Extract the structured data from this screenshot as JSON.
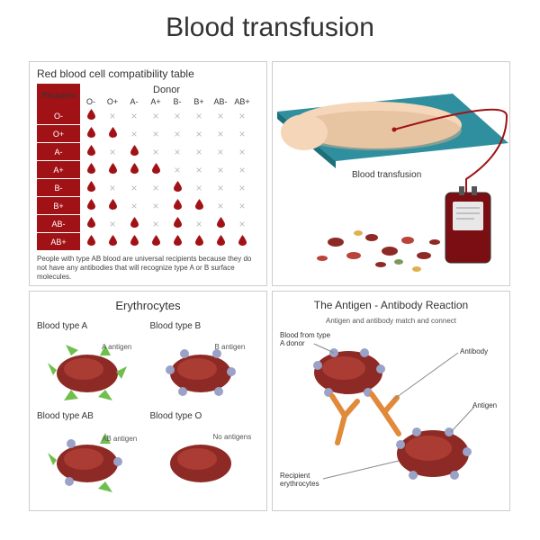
{
  "title": "Blood transfusion",
  "compat": {
    "title": "Red blood cell compatibility table",
    "recipient_header": "Recipient",
    "donor_header": "Donor",
    "donor_types": [
      "O-",
      "O+",
      "A-",
      "A+",
      "B-",
      "B+",
      "AB-",
      "AB+"
    ],
    "recipient_types": [
      "O-",
      "O+",
      "A-",
      "A+",
      "B-",
      "B+",
      "AB-",
      "AB+"
    ],
    "matrix": [
      [
        1,
        0,
        0,
        0,
        0,
        0,
        0,
        0
      ],
      [
        1,
        1,
        0,
        0,
        0,
        0,
        0,
        0
      ],
      [
        1,
        0,
        1,
        0,
        0,
        0,
        0,
        0
      ],
      [
        1,
        1,
        1,
        1,
        0,
        0,
        0,
        0
      ],
      [
        1,
        0,
        0,
        0,
        1,
        0,
        0,
        0
      ],
      [
        1,
        1,
        0,
        0,
        1,
        1,
        0,
        0
      ],
      [
        1,
        0,
        1,
        0,
        1,
        0,
        1,
        0
      ],
      [
        1,
        1,
        1,
        1,
        1,
        1,
        1,
        1
      ]
    ],
    "footnote": "People with type AB blood are universal recipients because they do not have any antibodies that will recognize type A or B surface molecules.",
    "header_bg": "#a11216",
    "header_fg": "#ffffff",
    "drop_color": "#a11216",
    "x_color": "#bbbbbb"
  },
  "arm": {
    "label": "Blood transfusion",
    "skin_color": "#f5d6b8",
    "skin_shadow": "#d9b28c",
    "bed_color": "#2f8f9e",
    "tube_color": "#a11216",
    "bag_fill": "#7a0e12",
    "bag_label_bg": "#e8e8e8"
  },
  "erythrocytes": {
    "title": "Erythrocytes",
    "cells": [
      {
        "label": "Blood type A",
        "sub": "A antigen",
        "antigen_color": "#6fbf4d"
      },
      {
        "label": "Blood type B",
        "sub": "B antigen",
        "antigen_color": "#9aa2c7"
      },
      {
        "label": "Blood type AB",
        "sub": "AB antigen",
        "antigen_color_a": "#6fbf4d",
        "antigen_color_b": "#9aa2c7"
      },
      {
        "label": "Blood type O",
        "sub": "No antigens"
      }
    ],
    "rbc_fill": "#8e2a25",
    "rbc_highlight": "#b8443a"
  },
  "antigen": {
    "title": "The Antigen - Antibody Reaction",
    "subtitle": "Antigen and antibody match and connect",
    "labels": {
      "donor": "Blood from type A donor",
      "antibody": "Antibody",
      "antigen": "Antigen",
      "recipient": "Recipient erythrocytes"
    },
    "rbc_fill": "#8e2a25",
    "rbc_highlight": "#b8443a",
    "antibody_color": "#e08a3a",
    "antigen_color": "#9aa2c7"
  },
  "style": {
    "panel_border": "#cccccc",
    "text_color": "#333333"
  }
}
